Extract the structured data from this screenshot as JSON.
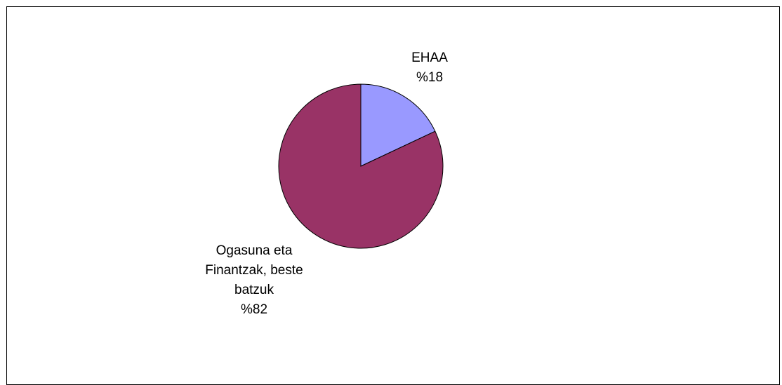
{
  "chart_data": {
    "type": "pie",
    "slices": [
      {
        "label_lines": [
          "EHAA",
          "%18"
        ],
        "value": 18,
        "color": "#9999ff"
      },
      {
        "label_lines": [
          "Ogasuna eta",
          "Finantzak, beste",
          "batzuk",
          "%82"
        ],
        "value": 82,
        "color": "#993366"
      }
    ],
    "start_angle_deg": 0,
    "direction": "clockwise",
    "outline_color": "#000000"
  }
}
